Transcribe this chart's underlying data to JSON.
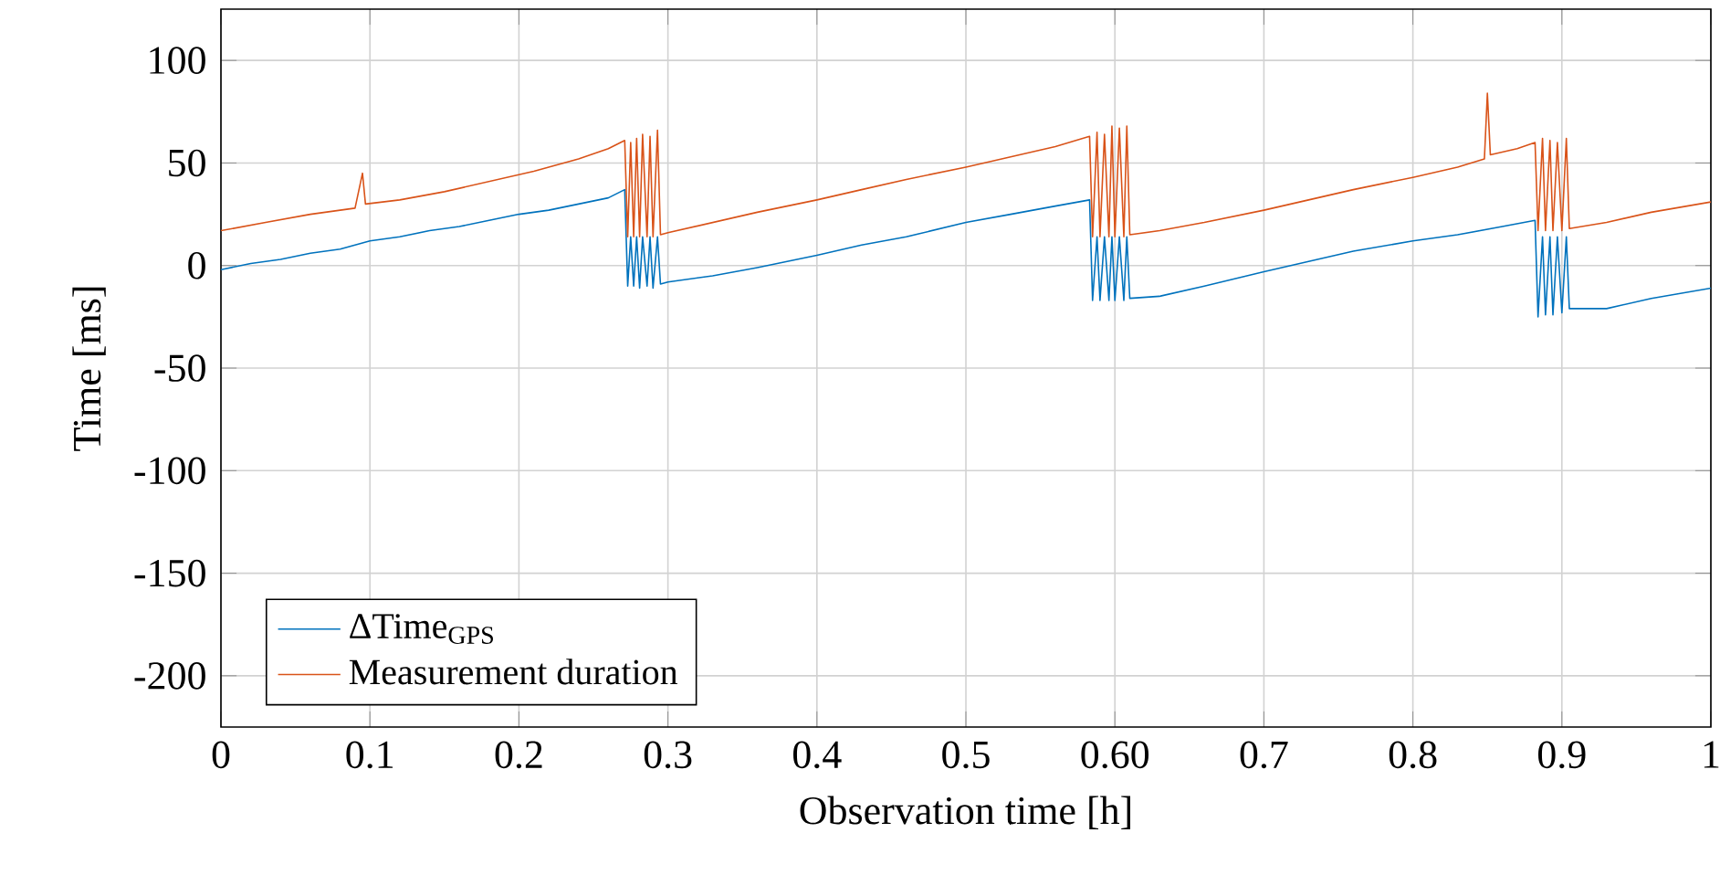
{
  "chart_data": {
    "type": "line",
    "xlabel": "Observation time [h]",
    "ylabel": "Time [ms]",
    "xlim": [
      0,
      1
    ],
    "ylim": [
      -225,
      125
    ],
    "xticks": [
      0,
      0.1,
      0.2,
      0.3,
      0.4,
      0.5,
      {
        "value": 0.6,
        "label": "0.60"
      },
      0.7,
      0.8,
      0.9,
      1
    ],
    "yticks": [
      -200,
      -150,
      -100,
      -50,
      0,
      50,
      100
    ],
    "grid": true,
    "legend": "bottom left",
    "marker": "none",
    "line_style": "solid",
    "series": [
      {
        "name": "ΔTime$_{GPS}$",
        "color": "#0072bd",
        "x": [
          0,
          0.02,
          0.04,
          0.06,
          0.08,
          0.1,
          0.12,
          0.14,
          0.16,
          0.18,
          0.2,
          0.22,
          0.24,
          0.26,
          0.271,
          0.273,
          0.275,
          0.277,
          0.279,
          0.281,
          0.283,
          0.286,
          0.288,
          0.29,
          0.293,
          0.295,
          0.3,
          0.33,
          0.36,
          0.4,
          0.43,
          0.46,
          0.5,
          0.53,
          0.56,
          0.583,
          0.585,
          0.588,
          0.59,
          0.593,
          0.596,
          0.598,
          0.6,
          0.603,
          0.606,
          0.608,
          0.61,
          0.63,
          0.66,
          0.7,
          0.73,
          0.76,
          0.8,
          0.83,
          0.86,
          0.882,
          0.884,
          0.887,
          0.889,
          0.892,
          0.894,
          0.897,
          0.9,
          0.903,
          0.905,
          0.93,
          0.96,
          1
        ],
        "values": [
          -2,
          1,
          3,
          6,
          8,
          12,
          14,
          17,
          19,
          22,
          25,
          27,
          30,
          33,
          37,
          -10,
          14,
          -10,
          14,
          -11,
          14,
          -10,
          14,
          -11,
          14,
          -9,
          -8,
          -5,
          -1,
          5,
          10,
          14,
          21,
          25,
          29,
          32,
          -17,
          14,
          -17,
          14,
          -17,
          14,
          -17,
          14,
          -17,
          14,
          -16,
          -15,
          -10,
          -3,
          2,
          7,
          12,
          15,
          19,
          22,
          -25,
          14,
          -24,
          14,
          -24,
          14,
          -23,
          14,
          -21,
          -21,
          -16,
          -11
        ]
      },
      {
        "name": "Measurement duration",
        "color": "#d95319",
        "x": [
          0,
          0.03,
          0.06,
          0.09,
          0.095,
          0.097,
          0.12,
          0.15,
          0.18,
          0.21,
          0.24,
          0.26,
          0.271,
          0.273,
          0.275,
          0.277,
          0.279,
          0.281,
          0.283,
          0.286,
          0.288,
          0.29,
          0.293,
          0.295,
          0.3,
          0.33,
          0.36,
          0.4,
          0.43,
          0.46,
          0.5,
          0.53,
          0.56,
          0.583,
          0.585,
          0.588,
          0.59,
          0.593,
          0.596,
          0.598,
          0.6,
          0.603,
          0.606,
          0.608,
          0.61,
          0.63,
          0.66,
          0.7,
          0.73,
          0.76,
          0.8,
          0.83,
          0.848,
          0.85,
          0.852,
          0.87,
          0.882,
          0.884,
          0.887,
          0.889,
          0.892,
          0.894,
          0.897,
          0.9,
          0.903,
          0.905,
          0.93,
          0.96,
          1
        ],
        "values": [
          17,
          21,
          25,
          28,
          45,
          30,
          32,
          36,
          41,
          46,
          52,
          57,
          61,
          14,
          60,
          14,
          62,
          14,
          64,
          14,
          63,
          14,
          66,
          15,
          16,
          21,
          26,
          32,
          37,
          42,
          48,
          53,
          58,
          63,
          14,
          65,
          14,
          64,
          14,
          68,
          14,
          67,
          14,
          68,
          15,
          17,
          21,
          27,
          32,
          37,
          43,
          48,
          52,
          84,
          54,
          57,
          60,
          17,
          62,
          17,
          61,
          17,
          60,
          17,
          62,
          18,
          21,
          26,
          31
        ]
      }
    ]
  }
}
